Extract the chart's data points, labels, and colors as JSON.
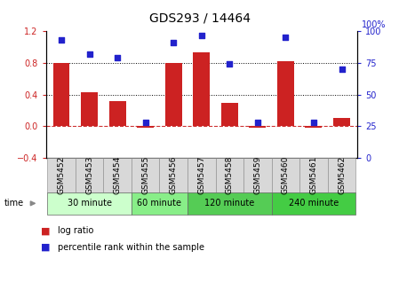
{
  "title": "GDS293 / 14464",
  "samples": [
    "GSM5452",
    "GSM5453",
    "GSM5454",
    "GSM5455",
    "GSM5456",
    "GSM5457",
    "GSM5458",
    "GSM5459",
    "GSM5460",
    "GSM5461",
    "GSM5462"
  ],
  "log_ratio": [
    0.8,
    0.43,
    0.32,
    -0.02,
    0.8,
    0.93,
    0.3,
    -0.02,
    0.82,
    -0.02,
    0.1
  ],
  "percentile": [
    93,
    82,
    79,
    28,
    91,
    97,
    74,
    28,
    95,
    28,
    70
  ],
  "ylim_left": [
    -0.4,
    1.2
  ],
  "ylim_right": [
    0,
    100
  ],
  "yticks_left": [
    -0.4,
    0.0,
    0.4,
    0.8,
    1.2
  ],
  "yticks_right": [
    0,
    25,
    50,
    75,
    100
  ],
  "bar_color": "#cc2222",
  "dot_color": "#2222cc",
  "zero_line_color": "#cc3333",
  "bg_color": "#ffffff",
  "groups": [
    {
      "label": "30 minute",
      "start": 0,
      "end": 2,
      "color": "#ccffcc"
    },
    {
      "label": "60 minute",
      "start": 3,
      "end": 4,
      "color": "#88ee88"
    },
    {
      "label": "120 minute",
      "start": 5,
      "end": 7,
      "color": "#55cc55"
    },
    {
      "label": "240 minute",
      "start": 8,
      "end": 10,
      "color": "#44cc44"
    }
  ],
  "time_label": "time",
  "legend_bar_label": "log ratio",
  "legend_dot_label": "percentile rank within the sample",
  "title_fontsize": 10,
  "tick_fontsize": 7,
  "sample_fontsize": 6.5,
  "group_fontsize": 7,
  "legend_fontsize": 7
}
